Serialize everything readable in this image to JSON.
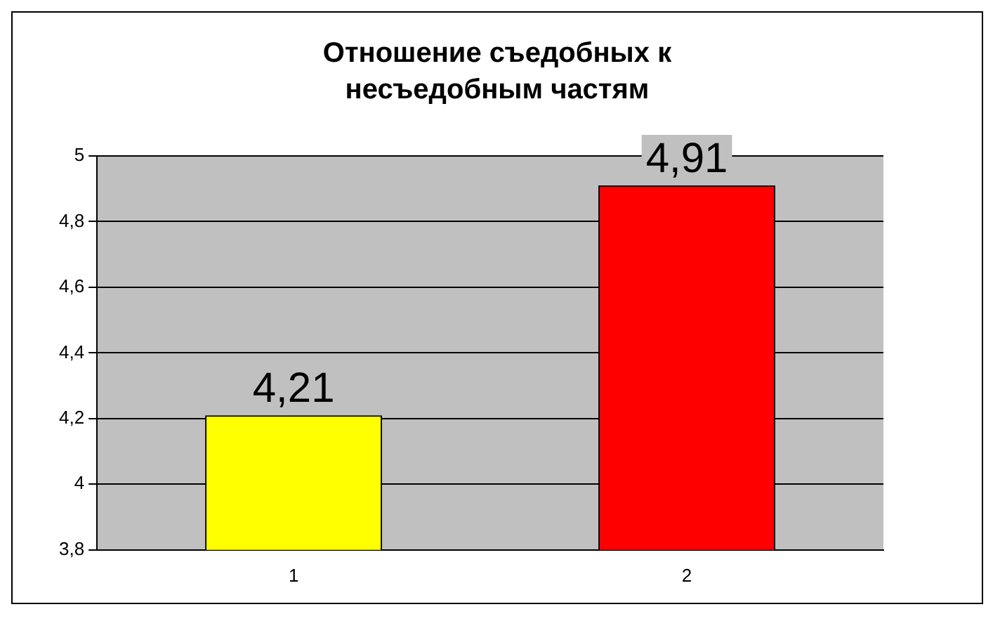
{
  "chart_data": {
    "type": "bar",
    "title": "Отношение съедобных к несъедобным частям",
    "categories": [
      "1",
      "2"
    ],
    "values": [
      4.21,
      4.91
    ],
    "colors": [
      "#ffff00",
      "#ff0000"
    ],
    "value_labels": [
      "4,21",
      "4,91"
    ],
    "ylim": [
      3.8,
      5
    ],
    "yticks": [
      {
        "value": 3.8,
        "label": "3,8"
      },
      4,
      {
        "value": 4.2,
        "label": "4,2"
      },
      {
        "value": 4.4,
        "label": "4,4"
      },
      {
        "value": 4.6,
        "label": "4,6"
      },
      {
        "value": 4.8,
        "label": "4,8"
      },
      5
    ],
    "grid": "y",
    "legend": false
  }
}
